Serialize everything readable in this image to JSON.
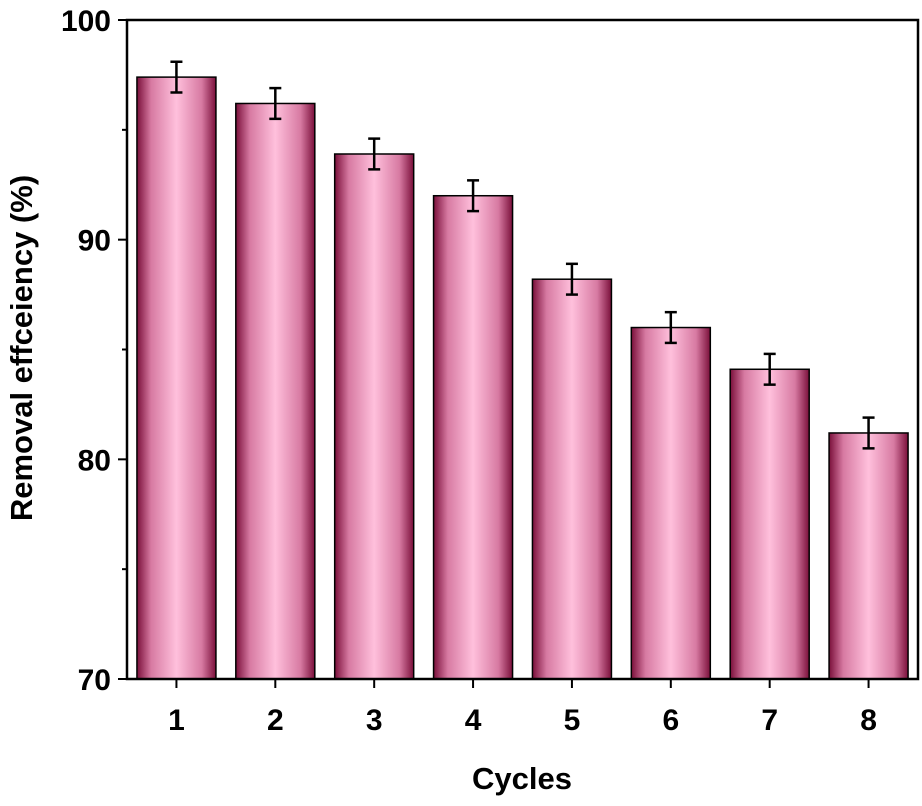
{
  "chart_data": {
    "type": "bar",
    "title": "",
    "xlabel": "Cycles",
    "ylabel": "Removal effceiency (%)",
    "categories": [
      "1",
      "2",
      "3",
      "4",
      "5",
      "6",
      "7",
      "8"
    ],
    "values": [
      97.4,
      96.2,
      93.9,
      92.0,
      88.2,
      86.0,
      84.1,
      81.2
    ],
    "errors": [
      0.7,
      0.7,
      0.7,
      0.7,
      0.7,
      0.7,
      0.7,
      0.7
    ],
    "ylim": [
      70,
      100
    ],
    "yticks": [
      70,
      80,
      90,
      100
    ],
    "grid": false,
    "colors": {
      "bar_edge": "#7a0f3a",
      "bar_center": "#ffc0dc",
      "axis": "#000000"
    }
  }
}
